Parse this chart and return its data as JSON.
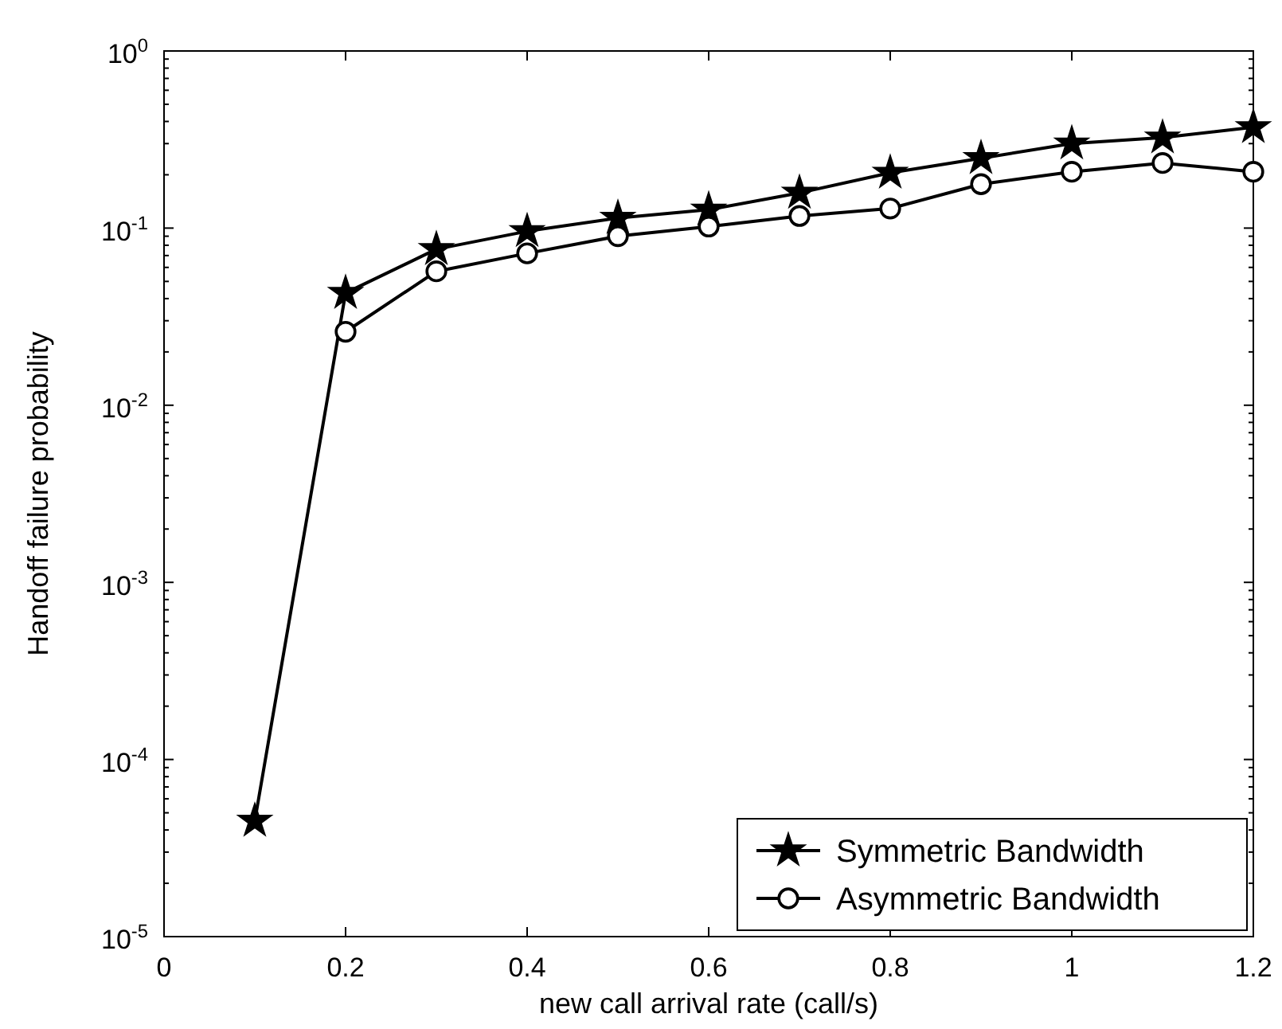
{
  "chart_data": {
    "type": "line",
    "xlabel": "new call arrival rate (call/s)",
    "ylabel": "Handoff failure probability",
    "log": "y",
    "grid": false,
    "legend": "bottom right",
    "x": [
      0.1,
      0.2,
      0.3,
      0.4,
      0.5,
      0.6,
      0.7,
      0.8,
      0.9,
      1.0,
      1.1,
      1.2
    ],
    "series": [
      {
        "name": "Symmetric Bandwidth",
        "color": "#000000",
        "marker": "star",
        "values": [
          4.5e-05,
          0.043,
          0.076,
          0.096,
          0.114,
          0.127,
          0.158,
          0.205,
          0.248,
          0.3,
          0.324,
          0.371
        ]
      },
      {
        "name": "Asymmetric Bandwidth",
        "color": "#000000",
        "marker": "circle",
        "values": [
          null,
          0.026,
          0.057,
          0.072,
          0.09,
          0.102,
          0.117,
          0.129,
          0.177,
          0.208,
          0.233,
          0.208
        ]
      }
    ],
    "xlim": [
      0,
      1.2
    ],
    "xticks": [
      0,
      0.2,
      0.4,
      0.6,
      0.8,
      {
        "value": 1,
        "label": "1"
      },
      1.2
    ],
    "ylim": [
      1e-05,
      1
    ],
    "yticks": [
      {
        "value": 1e-05,
        "label": "10$^{-5}$"
      },
      {
        "value": 0.0001,
        "label": "10$^{-4}$"
      },
      {
        "value": 0.001,
        "label": "10$^{-3}$"
      },
      {
        "value": 0.01,
        "label": "10$^{-2}$"
      },
      {
        "value": 0.1,
        "label": "10$^{-1}$"
      },
      {
        "value": 1,
        "label": "10$^{0}$"
      }
    ]
  }
}
